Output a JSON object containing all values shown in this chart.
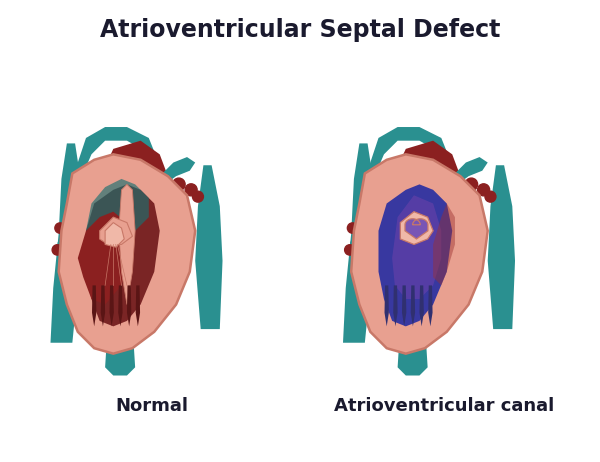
{
  "title": "Atrioventricular Septal Defect",
  "label_normal": "Normal",
  "label_defect": "Atrioventricular canal",
  "title_fontsize": 17,
  "label_fontsize": 13,
  "bg_color": "#ffffff",
  "title_color": "#1a1a2e",
  "label_color": "#1a1a2e",
  "colors": {
    "teal_vessel": "#2a9090",
    "teal_dark": "#1a7070",
    "teal_light": "#3ab0b0",
    "red_tissue": "#8b2020",
    "red_dark": "#6b1515",
    "red_medium": "#9b3030",
    "pink_wall": "#e8a090",
    "pink_light": "#f0b8a8",
    "pink_outer": "#c87868",
    "pink_inner": "#d49080",
    "blue_fill": "#3838a0",
    "blue_medium": "#5050b8",
    "purple_fill": "#6040a8",
    "purple_mix": "#7855b5",
    "arrow_color": "#b0a0d0",
    "interior_dark": "#5a1515",
    "interior_brown": "#7a2525",
    "muscle_color": "#303070"
  }
}
